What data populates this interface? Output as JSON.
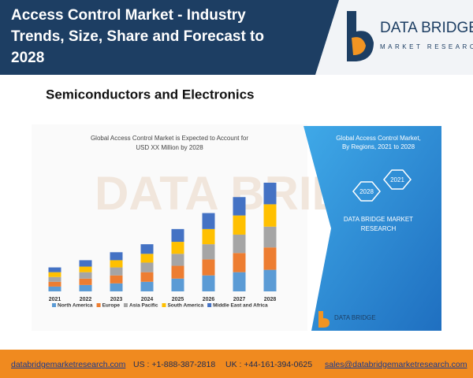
{
  "header": {
    "title_lines": [
      "Access Control Market - Industry",
      "Trends, Size, Share and Forecast to",
      "2028"
    ],
    "logo_name": "DATA BRIDGE",
    "logo_tagline": "MARKET RESEARCH"
  },
  "subtitle": "Semiconductors and Electronics",
  "chart_data": {
    "type": "stacked-bar",
    "title_lines": [
      "Global Access Control Market is Expected to Account for",
      "USD XX Million by 2028"
    ],
    "categories": [
      "2021",
      "2022",
      "2023",
      "2024",
      "2025",
      "2026",
      "2027",
      "2028"
    ],
    "series": [
      {
        "name": "North America",
        "color": "#5b9bd5",
        "values": [
          6,
          8,
          10,
          12,
          16,
          20,
          24,
          27
        ]
      },
      {
        "name": "Europe",
        "color": "#ed7d31",
        "values": [
          6,
          8,
          10,
          12,
          16,
          20,
          24,
          28
        ]
      },
      {
        "name": "Asia Pacific",
        "color": "#a5a5a5",
        "values": [
          6,
          8,
          10,
          12,
          15,
          19,
          23,
          26
        ]
      },
      {
        "name": "South America",
        "color": "#ffc000",
        "values": [
          6,
          7,
          9,
          11,
          15,
          19,
          24,
          28
        ]
      },
      {
        "name": "Middle East and Africa",
        "color": "#4472c4",
        "values": [
          6,
          8,
          10,
          12,
          16,
          20,
          23,
          27
        ]
      }
    ]
  },
  "side_panel": {
    "title_lines": [
      "Global Access Control Market,",
      "By Regions, 2021 to 2028"
    ],
    "hex_start": "2021",
    "hex_end": "2028",
    "brand_lines": [
      "DATA BRIDGE MARKET",
      "RESEARCH"
    ],
    "footer_logo": "DATA BRIDGE"
  },
  "footer": {
    "website": "databridgemarketresearch.com",
    "us_phone": "US : +1-888-387-2818",
    "uk_phone": "UK : +44-161-394-0625",
    "email": "sales@databridgemarketresearch.com"
  }
}
